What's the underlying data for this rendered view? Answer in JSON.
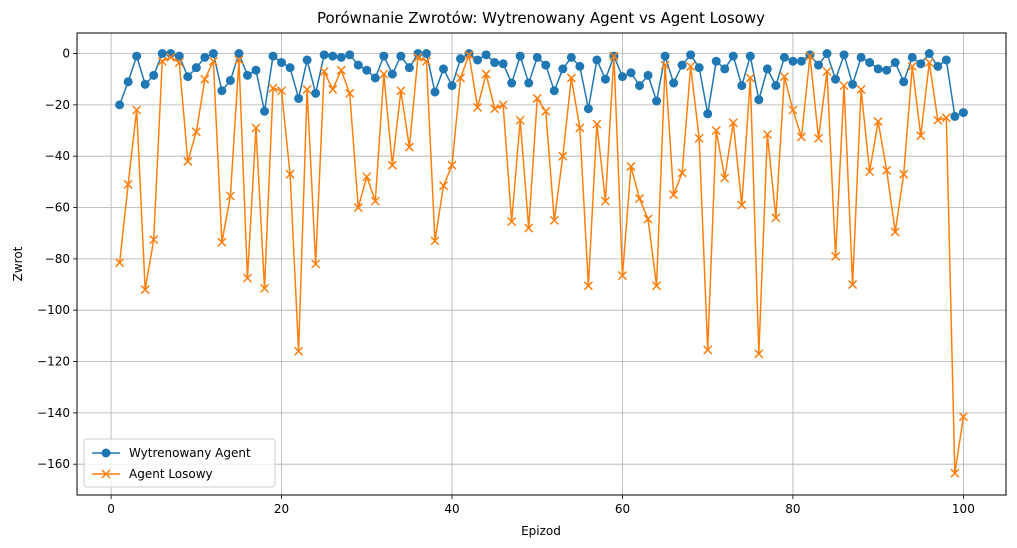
{
  "chart_data": {
    "type": "line",
    "title": "Porównanie Zwrotów: Wytrenowany Agent vs Agent Losowy",
    "xlabel": "Epizod",
    "ylabel": "Zwrot",
    "xlim": [
      -4,
      105
    ],
    "ylim": [
      -172,
      8
    ],
    "xticks": [
      0,
      20,
      40,
      60,
      80,
      100
    ],
    "yticks": [
      0,
      -20,
      -40,
      -60,
      -80,
      -100,
      -120,
      -140,
      -160
    ],
    "grid": true,
    "legend_position": "lower-left",
    "x": [
      1,
      2,
      3,
      4,
      5,
      6,
      7,
      8,
      9,
      10,
      11,
      12,
      13,
      14,
      15,
      16,
      17,
      18,
      19,
      20,
      21,
      22,
      23,
      24,
      25,
      26,
      27,
      28,
      29,
      30,
      31,
      32,
      33,
      34,
      35,
      36,
      37,
      38,
      39,
      40,
      41,
      42,
      43,
      44,
      45,
      46,
      47,
      48,
      49,
      50,
      51,
      52,
      53,
      54,
      55,
      56,
      57,
      58,
      59,
      60,
      61,
      62,
      63,
      64,
      65,
      66,
      67,
      68,
      69,
      70,
      71,
      72,
      73,
      74,
      75,
      76,
      77,
      78,
      79,
      80,
      81,
      82,
      83,
      84,
      85,
      86,
      87,
      88,
      89,
      90,
      91,
      92,
      93,
      94,
      95,
      96,
      97,
      98,
      99,
      100
    ],
    "series": [
      {
        "name": "Wytrenowany Agent",
        "color": "#1f77b4",
        "marker": "circle",
        "values": [
          -20,
          -11,
          -1,
          -12,
          -8.5,
          0,
          0,
          -1,
          -9,
          -5.5,
          -1.5,
          0,
          -14.5,
          -10.5,
          0,
          -8.5,
          -6.5,
          -22.5,
          -1,
          -3.5,
          -5.5,
          -17.5,
          -2.5,
          -15.5,
          -0.5,
          -1,
          -1.5,
          -0.5,
          -4.5,
          -6.5,
          -9.5,
          -1,
          -8,
          -1,
          -5.5,
          0,
          0,
          -15,
          -6,
          -12.5,
          -2,
          0,
          -2.5,
          -0.5,
          -3.5,
          -4,
          -11.5,
          -1,
          -11.5,
          -1.5,
          -4.5,
          -14.5,
          -6,
          -1.5,
          -5,
          -21.5,
          -2.5,
          -10,
          -1,
          -9,
          -7.5,
          -12.5,
          -8.5,
          -18.5,
          -1,
          -11.5,
          -4.5,
          -0.5,
          -5.5,
          -23.5,
          -3,
          -6,
          -1,
          -12.5,
          -1,
          -18,
          -6,
          -12.5,
          -1.5,
          -3,
          -3,
          -0.5,
          -4.5,
          0,
          -10,
          -0.5,
          -12,
          -1.5,
          -3.5,
          -6,
          -6.5,
          -3.5,
          -11,
          -1.5,
          -4,
          0,
          -5,
          -2.5,
          -24.5,
          -23
        ]
      },
      {
        "name": "Agent Losowy",
        "color": "#ff7f0e",
        "marker": "x",
        "values": [
          -81.5,
          -51,
          -22,
          -92,
          -72.5,
          -3,
          -1.5,
          -3.5,
          -42,
          -30.5,
          -10,
          -3,
          -73.5,
          -55.5,
          -2.5,
          -87.5,
          -29,
          -91.5,
          -13.5,
          -14.5,
          -47,
          -116,
          -14,
          -82,
          -7,
          -14,
          -6.5,
          -15.5,
          -60,
          -48,
          -57.5,
          -8,
          -43.5,
          -14.5,
          -36.5,
          -1.5,
          -3,
          -73,
          -51.5,
          -43.5,
          -9.5,
          -0.5,
          -21,
          -8,
          -21.5,
          -20,
          -65.5,
          -26,
          -68,
          -17.5,
          -22.5,
          -65,
          -40,
          -9.5,
          -29,
          -90.5,
          -27.5,
          -57.5,
          -1,
          -86.5,
          -44,
          -56.5,
          -64.5,
          -90.5,
          -4.5,
          -55,
          -46.5,
          -5,
          -33,
          -115.5,
          -30,
          -48.5,
          -27,
          -59,
          -9.5,
          -117,
          -31.5,
          -64,
          -9,
          -22,
          -32.5,
          -1,
          -33,
          -7,
          -79,
          -12.5,
          -90,
          -14,
          -46,
          -26.5,
          -45.5,
          -69.5,
          -47,
          -5,
          -32,
          -3.5,
          -26,
          -25,
          -163.5,
          -141.5
        ]
      }
    ]
  }
}
